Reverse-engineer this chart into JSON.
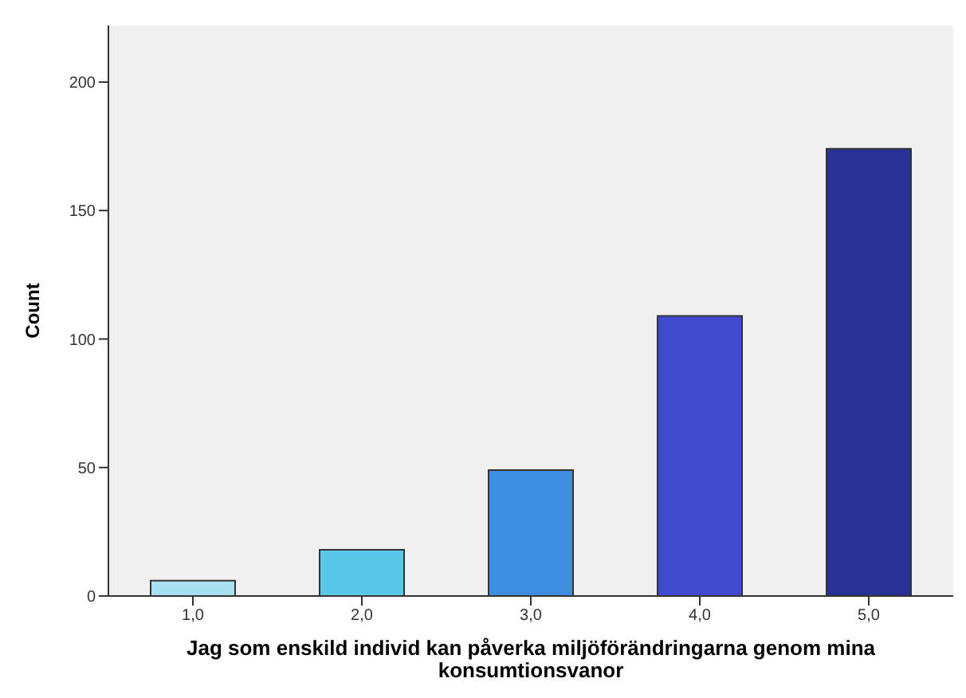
{
  "chart_data": {
    "type": "bar",
    "xlabel": "Jag som enskild individ kan påverka  miljöförändringarna genom mina konsumtionsvanor",
    "ylabel": "Count",
    "categories": [
      "1,0",
      "2,0",
      "3,0",
      "4,0",
      "5,0"
    ],
    "values": [
      6,
      18,
      49,
      109,
      174
    ],
    "colors": [
      "#a8e2f0",
      "#5bc8ea",
      "#3e8fe4",
      "#414bcf",
      "#283194"
    ],
    "ylim": [
      0,
      222
    ],
    "yticks": [
      0,
      50,
      100,
      150,
      200
    ],
    "grid": false,
    "legend": false
  }
}
